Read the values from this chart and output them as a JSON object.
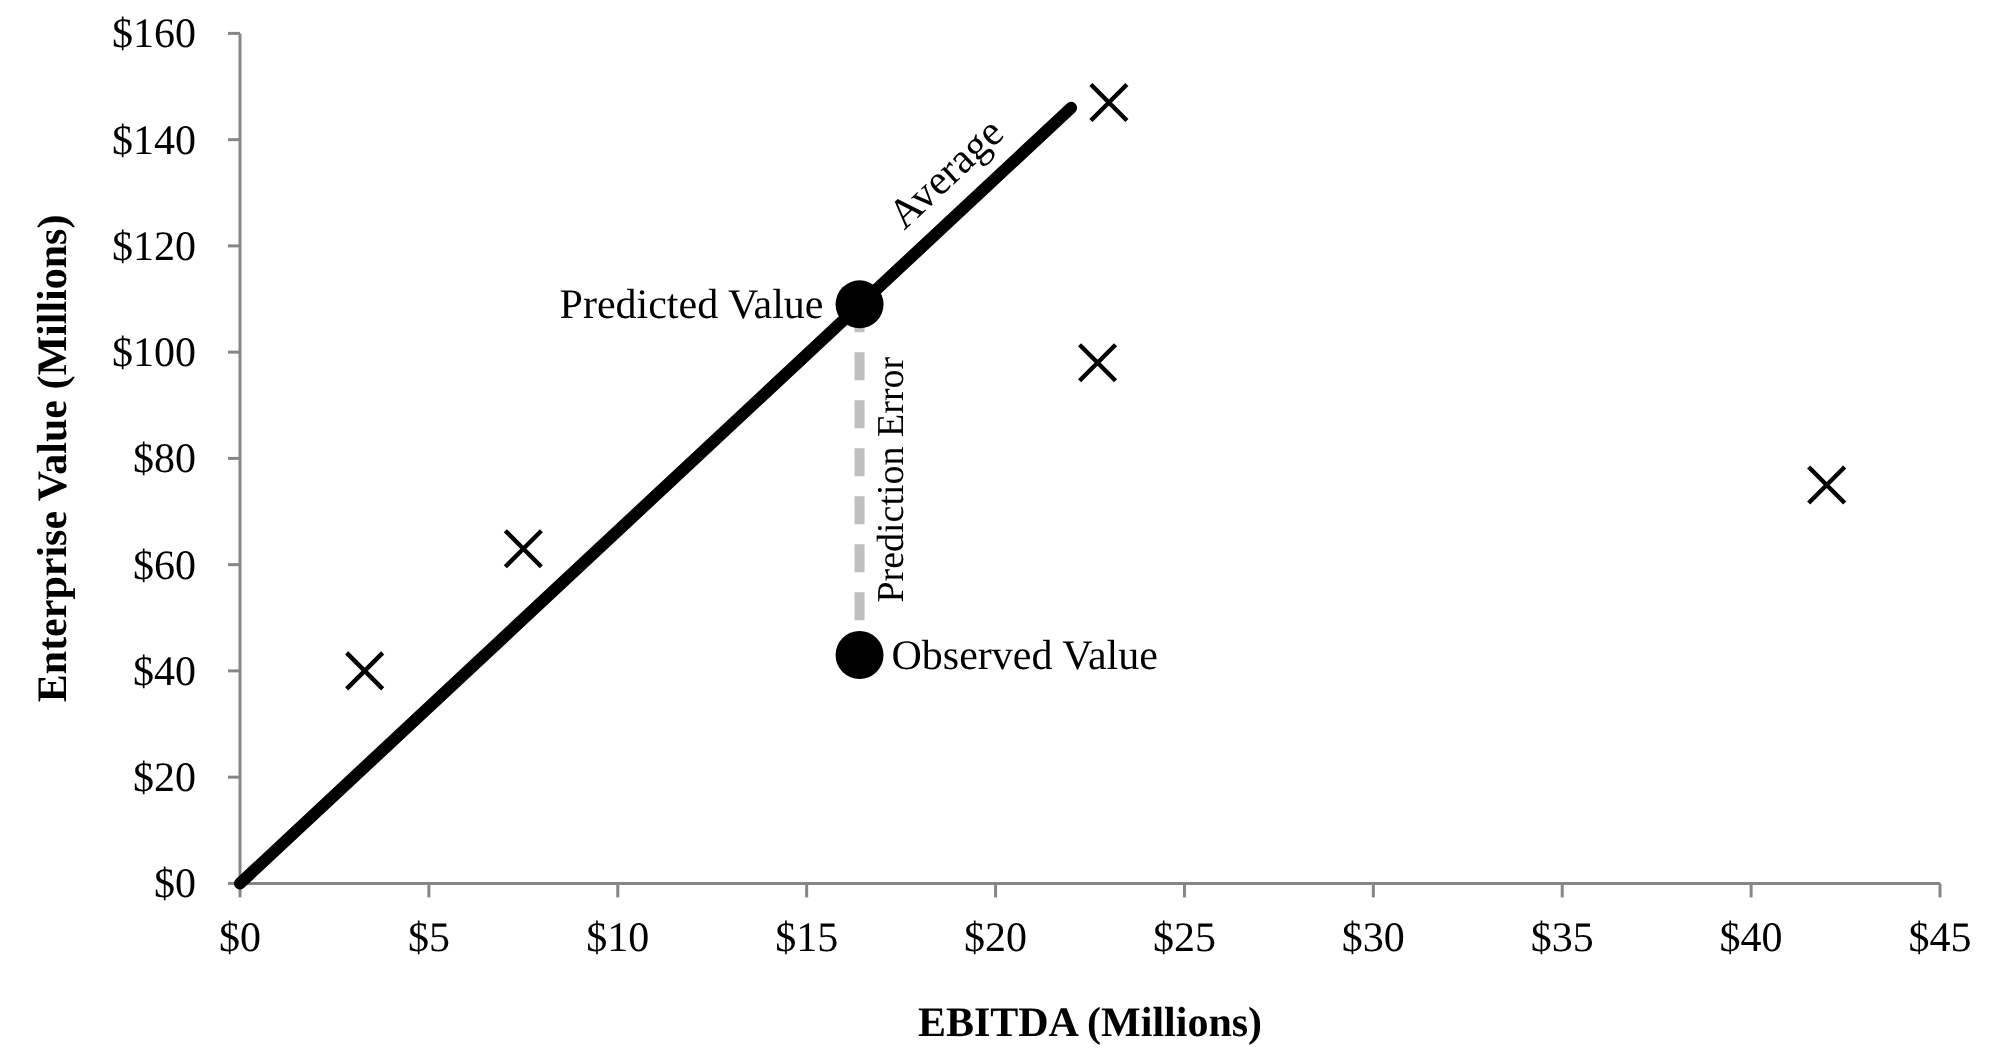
{
  "chart_data": {
    "type": "scatter",
    "xlabel": "EBITDA (Millions)",
    "ylabel": "Enterprise Value (Millions)",
    "xlim": [
      0,
      45
    ],
    "ylim": [
      0,
      160
    ],
    "xticks": [
      {
        "value": 0,
        "label": "$0"
      },
      {
        "value": 5,
        "label": "$5"
      },
      {
        "value": 10,
        "label": "$10"
      },
      {
        "value": 15,
        "label": "$15"
      },
      {
        "value": 20,
        "label": "$20"
      },
      {
        "value": 25,
        "label": "$25"
      },
      {
        "value": 30,
        "label": "$30"
      },
      {
        "value": 35,
        "label": "$35"
      },
      {
        "value": 40,
        "label": "$40"
      },
      {
        "value": 45,
        "label": "$45"
      }
    ],
    "yticks": [
      {
        "value": 0,
        "label": "$0"
      },
      {
        "value": 20,
        "label": "$20"
      },
      {
        "value": 40,
        "label": "$40"
      },
      {
        "value": 60,
        "label": "$60"
      },
      {
        "value": 80,
        "label": "$80"
      },
      {
        "value": 100,
        "label": "$100"
      },
      {
        "value": 120,
        "label": "$120"
      },
      {
        "value": 140,
        "label": "$140"
      },
      {
        "value": 160,
        "label": "$160"
      }
    ],
    "grid": false,
    "series": [
      {
        "color": "#000000",
        "marker": "cross",
        "x": [
          3.3,
          7.5,
          23,
          22.7,
          42
        ],
        "values": [
          40,
          63,
          147,
          98,
          75
        ]
      },
      {
        "type": "line",
        "name": "Average",
        "color": "#000000",
        "line_style": "solid",
        "x": [
          0,
          22
        ],
        "values": [
          0,
          146
        ]
      },
      {
        "type": "line",
        "name": "Prediction Error",
        "color": "#bfbfbf",
        "line_style": "dashed",
        "x": [
          16.4,
          16.4
        ],
        "values": [
          109,
          43
        ]
      },
      {
        "name": "Predicted Value",
        "color": "#000000",
        "marker": "circle",
        "x": [
          16.4
        ],
        "values": [
          109
        ]
      },
      {
        "name": "Observed Value",
        "color": "#000000",
        "marker": "circle",
        "x": [
          16.4
        ],
        "values": [
          43
        ]
      }
    ]
  }
}
